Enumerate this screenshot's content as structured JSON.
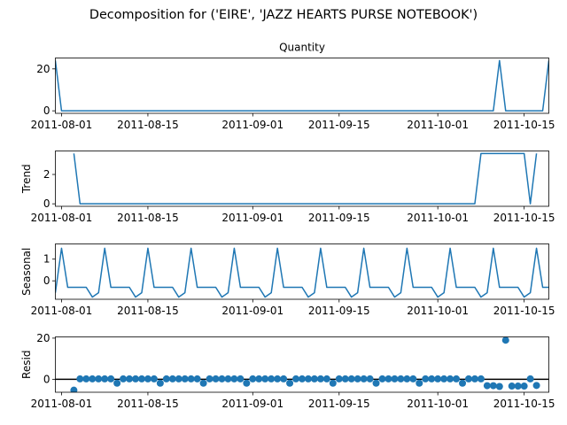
{
  "figure": {
    "suptitle": "Decomposition for ('EIRE', 'JAZZ HEARTS PURSE NOTEBOOK')"
  },
  "chart_data": [
    {
      "type": "line",
      "title": "Quantity",
      "ylabel": "",
      "x_dates": [
        "2011-07-31",
        "2011-08-01",
        "2011-10-10",
        "2011-10-11",
        "2011-10-12",
        "2011-10-18",
        "2011-10-19"
      ],
      "values": [
        24,
        0,
        0,
        24,
        0,
        0,
        24
      ],
      "xlim": [
        "2011-07-31",
        "2011-10-19"
      ],
      "ylim": [
        -1.2,
        25.2
      ],
      "yticks": [
        0,
        20
      ],
      "color": "#1f77b4"
    },
    {
      "type": "line",
      "title": "",
      "ylabel": "Trend",
      "x_dates": [
        "2011-08-03",
        "2011-08-04",
        "2011-10-07",
        "2011-10-08",
        "2011-10-15",
        "2011-10-16",
        "2011-10-17"
      ],
      "values": [
        3.43,
        0,
        0,
        3.43,
        3.43,
        0,
        3.43
      ],
      "xlim": [
        "2011-07-31",
        "2011-10-19"
      ],
      "ylim": [
        -0.17,
        3.6
      ],
      "yticks": [
        0,
        2
      ],
      "color": "#1f77b4"
    },
    {
      "type": "line",
      "title": "",
      "ylabel": "Seasonal",
      "period_days": 7,
      "pattern_start": "2011-07-31",
      "pattern": [
        -0.55,
        1.5,
        -0.3,
        -0.3,
        -0.3,
        -0.3,
        -0.75
      ],
      "xlim": [
        "2011-07-31",
        "2011-10-19"
      ],
      "ylim": [
        -0.85,
        1.7
      ],
      "yticks": [
        0,
        1
      ],
      "color": "#1f77b4"
    },
    {
      "type": "scatter",
      "title": "",
      "ylabel": "Resid",
      "start_date": "2011-08-03",
      "values": [
        -5.3,
        0.2,
        0.2,
        0.2,
        0.2,
        0.2,
        0.2,
        -1.9,
        0.2,
        0.2,
        0.2,
        0.2,
        0.2,
        0.2,
        -1.9,
        0.2,
        0.2,
        0.2,
        0.2,
        0.2,
        0.2,
        -1.9,
        0.2,
        0.2,
        0.2,
        0.2,
        0.2,
        0.2,
        -1.9,
        0.2,
        0.2,
        0.2,
        0.2,
        0.2,
        0.2,
        -1.9,
        0.2,
        0.2,
        0.2,
        0.2,
        0.2,
        0.2,
        -1.9,
        0.2,
        0.2,
        0.2,
        0.2,
        0.2,
        0.2,
        -1.9,
        0.2,
        0.2,
        0.2,
        0.2,
        0.2,
        0.2,
        -1.9,
        0.2,
        0.2,
        0.2,
        0.2,
        0.2,
        0.2,
        -1.9,
        0.2,
        0.2,
        0.2,
        -3.1,
        -3.1,
        -3.5,
        19.0,
        -3.3,
        -3.3,
        -3.3,
        0.2,
        -3.0
      ],
      "zero_line": true,
      "xlim": [
        "2011-07-31",
        "2011-10-19"
      ],
      "ylim": [
        -6.3,
        20.6
      ],
      "yticks": [
        0,
        20
      ],
      "color": "#1f77b4"
    }
  ],
  "x_axis": {
    "ticks": [
      "2011-08-01",
      "2011-08-15",
      "2011-09-01",
      "2011-09-15",
      "2011-10-01",
      "2011-10-15"
    ]
  }
}
